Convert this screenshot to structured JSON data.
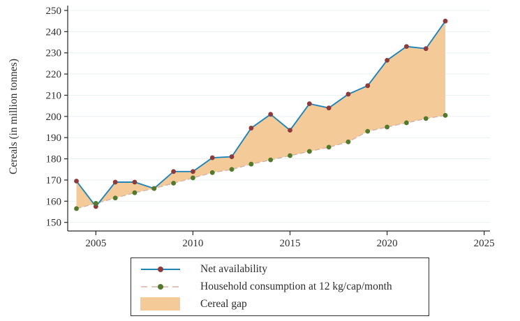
{
  "chart_data": {
    "type": "line",
    "title": "",
    "xlabel": "",
    "ylabel": "Cereals (in million tonnes)",
    "x": [
      2004,
      2005,
      2006,
      2007,
      2008,
      2009,
      2010,
      2011,
      2012,
      2013,
      2014,
      2015,
      2016,
      2017,
      2018,
      2019,
      2020,
      2021,
      2022,
      2023
    ],
    "series": [
      {
        "name": "Net availability",
        "line_style": "solid",
        "line_color": "#2184b8",
        "marker_color": "#8e3a3b",
        "values": [
          169.5,
          157.5,
          169,
          169,
          166,
          174,
          174,
          180.5,
          181,
          194.5,
          201,
          193.5,
          206,
          204,
          210.5,
          214.5,
          226.5,
          233,
          232,
          245
        ]
      },
      {
        "name": "Household consumption at 12 kg/cap/month",
        "line_style": "dashed",
        "line_color": "#d6b3a8",
        "marker_color": "#527a2a",
        "values": [
          156.5,
          159,
          161.5,
          164,
          166,
          168.5,
          171,
          173.5,
          175,
          177.5,
          179.5,
          181.5,
          183.5,
          185.5,
          188,
          193,
          195,
          197,
          199,
          200.5
        ]
      }
    ],
    "gap_area": {
      "name": "Cereal gap",
      "fill_color": "#f4cb98"
    },
    "ylim": [
      150,
      250
    ],
    "yticks": [
      150,
      160,
      170,
      180,
      190,
      200,
      210,
      220,
      230,
      240,
      250
    ],
    "xticks": [
      2005,
      2010,
      2015,
      2020,
      2025
    ],
    "grid": "horizontal",
    "grid_color": "#e9f1f3",
    "axis_color": "#262626",
    "legend_position": "bottom-center"
  }
}
